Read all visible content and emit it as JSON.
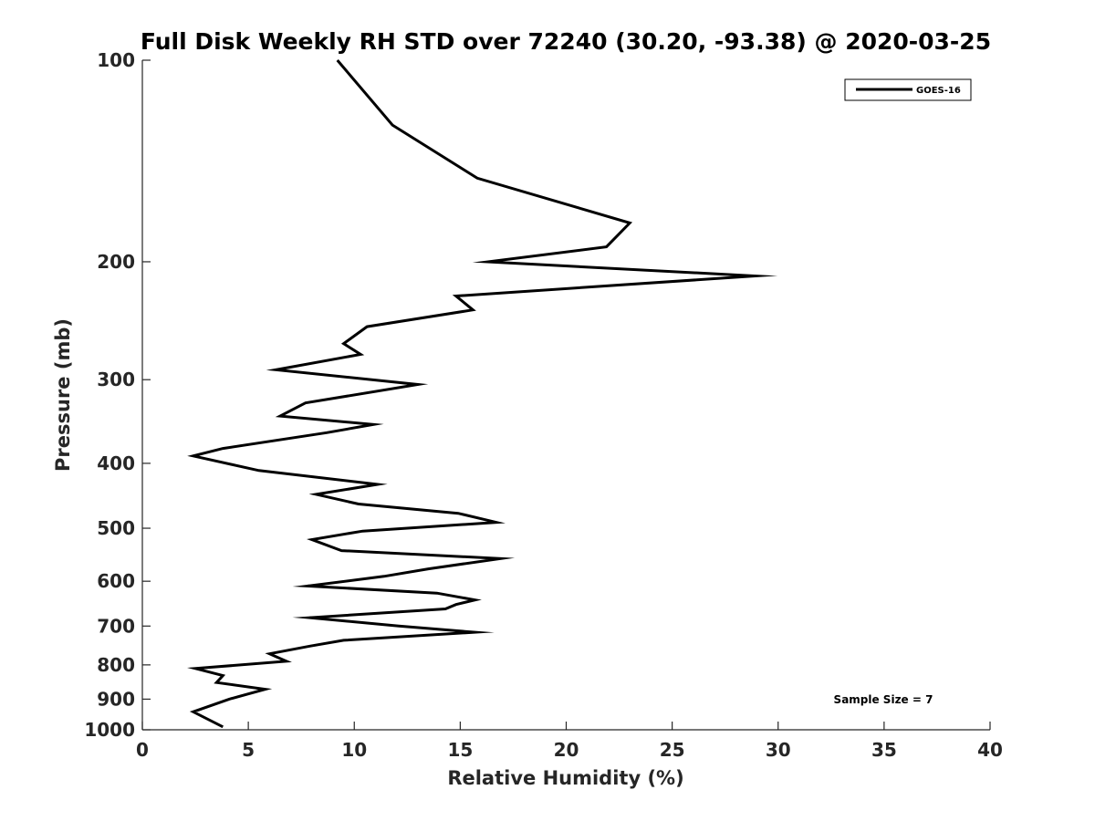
{
  "chart_data": {
    "type": "line",
    "title": "Full Disk Weekly RH STD over 72240 (30.20, -93.38) @ 2020-03-25",
    "xlabel": "Relative Humidity (%)",
    "ylabel": "Pressure (mb)",
    "xlim": [
      0,
      40
    ],
    "ylim": [
      100,
      1000
    ],
    "yscale": "log",
    "yreversed": true,
    "xticks": [
      0,
      5,
      10,
      15,
      20,
      25,
      30,
      35,
      40
    ],
    "yticks": [
      100,
      200,
      300,
      400,
      500,
      600,
      700,
      800,
      900,
      1000
    ],
    "grid": false,
    "legend_position": "top-right",
    "annotation": "Sample Size = 7",
    "series": [
      {
        "name": "GOES-16",
        "color": "#000000",
        "points": [
          [
            9.2,
            100
          ],
          [
            11.8,
            125
          ],
          [
            15.8,
            150
          ],
          [
            23.0,
            175
          ],
          [
            21.9,
            190
          ],
          [
            16.3,
            200
          ],
          [
            28.9,
            210
          ],
          [
            14.8,
            225
          ],
          [
            15.6,
            236
          ],
          [
            10.6,
            250
          ],
          [
            9.5,
            265
          ],
          [
            10.3,
            275
          ],
          [
            6.3,
            290
          ],
          [
            13.0,
            305
          ],
          [
            7.7,
            325
          ],
          [
            6.5,
            340
          ],
          [
            10.9,
            350
          ],
          [
            8.7,
            360
          ],
          [
            3.8,
            380
          ],
          [
            2.4,
            390
          ],
          [
            5.5,
            410
          ],
          [
            11.1,
            430
          ],
          [
            8.2,
            445
          ],
          [
            10.2,
            460
          ],
          [
            14.9,
            475
          ],
          [
            16.7,
            490
          ],
          [
            10.4,
            505
          ],
          [
            8.0,
            520
          ],
          [
            9.4,
            540
          ],
          [
            16.9,
            555
          ],
          [
            13.5,
            575
          ],
          [
            11.4,
            590
          ],
          [
            7.8,
            610
          ],
          [
            13.9,
            625
          ],
          [
            15.7,
            640
          ],
          [
            14.8,
            650
          ],
          [
            14.3,
            660
          ],
          [
            7.9,
            680
          ],
          [
            12.1,
            700
          ],
          [
            15.7,
            715
          ],
          [
            9.5,
            735
          ],
          [
            7.9,
            750
          ],
          [
            6.0,
            770
          ],
          [
            6.8,
            790
          ],
          [
            2.5,
            810
          ],
          [
            3.8,
            830
          ],
          [
            3.5,
            850
          ],
          [
            5.8,
            870
          ],
          [
            4.1,
            900
          ],
          [
            2.4,
            940
          ],
          [
            3.8,
            990
          ]
        ]
      }
    ]
  }
}
